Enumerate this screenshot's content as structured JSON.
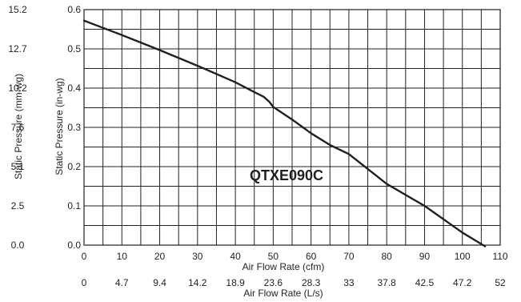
{
  "chart_data": {
    "type": "line",
    "series": [
      {
        "name": "QTXE090C",
        "x": [
          0,
          10,
          20,
          30,
          40,
          45,
          47.5,
          49,
          50,
          55,
          60,
          65,
          70,
          80,
          90,
          100,
          106
        ],
        "y": [
          0.572,
          0.535,
          0.497,
          0.457,
          0.415,
          0.39,
          0.378,
          0.365,
          0.352,
          0.32,
          0.285,
          0.255,
          0.232,
          0.156,
          0.1,
          0.032,
          -0.003
        ]
      }
    ],
    "annotation": "QTXE090C",
    "x_axis": {
      "title": "Air Flow Rate (cfm)",
      "range": [
        0,
        110
      ],
      "ticks": [
        0,
        10,
        20,
        30,
        40,
        50,
        60,
        70,
        80,
        90,
        100,
        110
      ],
      "tick_labels": [
        "0",
        "10",
        "20",
        "30",
        "40",
        "50",
        "60",
        "70",
        "80",
        "90",
        "100",
        "110"
      ]
    },
    "x2_axis": {
      "title": "Air Flow Rate (L/s)",
      "tick_labels": [
        "0",
        "4.7",
        "9.4",
        "14.2",
        "18.9",
        "23.6",
        "28.3",
        "33",
        "37.8",
        "42.5",
        "47.2",
        "52"
      ]
    },
    "y_axis": {
      "title": "Static Pressure (in-wg)",
      "range": [
        0,
        0.6
      ],
      "ticks": [
        0,
        0.1,
        0.2,
        0.3,
        0.4,
        0.5,
        0.6
      ],
      "tick_labels": [
        "0.0",
        "0.1",
        "0.2",
        "0.3",
        "0.4",
        "0.5",
        "0.6"
      ]
    },
    "y2_axis": {
      "title": "Static Pressure (mm-wg)",
      "tick_labels": [
        "0.0",
        "2.5",
        "5.1",
        "7.6",
        "10.2",
        "12.7",
        "15.2"
      ]
    },
    "grid": {
      "x_minor_step": 5,
      "y_minor_step": 0.05
    }
  }
}
